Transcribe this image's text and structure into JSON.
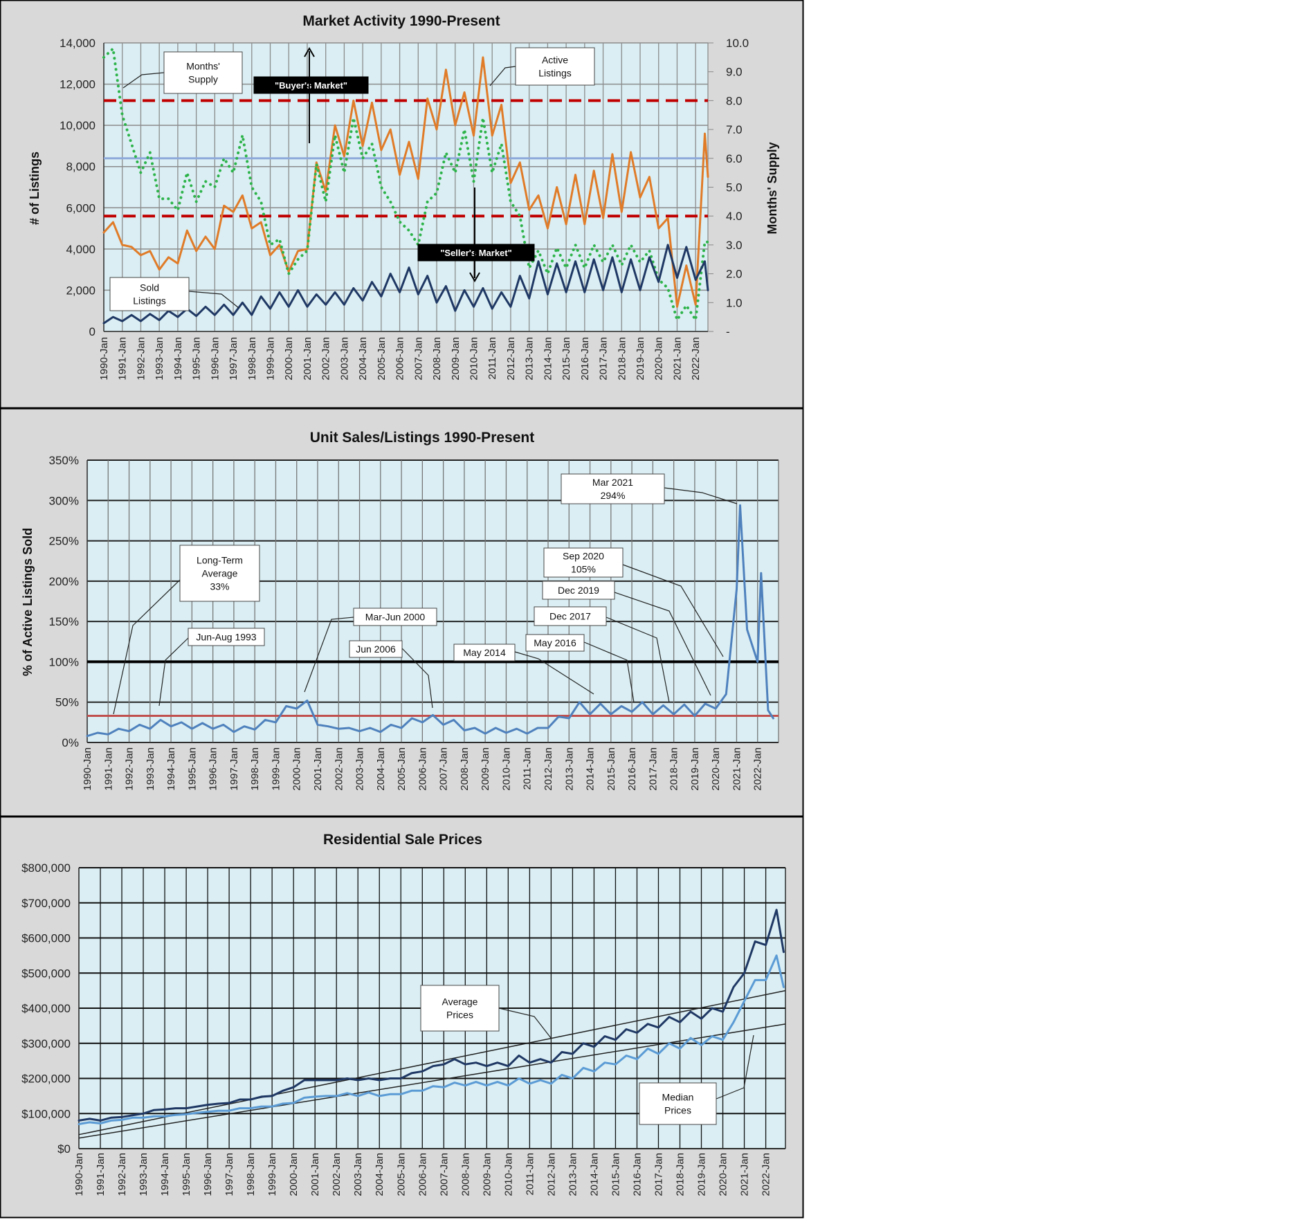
{
  "chart_data": [
    {
      "type": "line",
      "title": "Market Activity  1990-Present",
      "ylabel": "# of Listings",
      "ylabel_right": "Months' Supply",
      "ylim": [
        0,
        14000
      ],
      "ylim_right": [
        0,
        10
      ],
      "xlim": [
        "1990-01",
        "2022-09"
      ],
      "grid": true,
      "yticks": [
        "0",
        "2,000",
        "4,000",
        "6,000",
        "8,000",
        "10,000",
        "12,000",
        "14,000"
      ],
      "yticks_right": [
        "-",
        "1.0",
        "2.0",
        "3.0",
        "4.0",
        "5.0",
        "6.0",
        "7.0",
        "8.0",
        "9.0",
        "10.0"
      ],
      "xticks": [
        "1990-Jan",
        "1991-Jan",
        "1992-Jan",
        "1993-Jan",
        "1994-Jan",
        "1995-Jan",
        "1996-Jan",
        "1997-Jan",
        "1998-Jan",
        "1999-Jan",
        "2000-Jan",
        "2001-Jan",
        "2002-Jan",
        "2003-Jan",
        "2004-Jan",
        "2005-Jan",
        "2006-Jan",
        "2007-Jan",
        "2008-Jan",
        "2009-Jan",
        "2010-Jan",
        "2011-Jan",
        "2012-Jan",
        "2013-Jan",
        "2014-Jan",
        "2015-Jan",
        "2016-Jan",
        "2017-Jan",
        "2018-Jan",
        "2019-Jan",
        "2020-Jan",
        "2021-Jan",
        "2022-Jan"
      ],
      "x": [
        "1990-01",
        "1990-07",
        "1991-01",
        "1991-07",
        "1992-01",
        "1992-07",
        "1993-01",
        "1993-07",
        "1994-01",
        "1994-07",
        "1995-01",
        "1995-07",
        "1996-01",
        "1996-07",
        "1997-01",
        "1997-07",
        "1998-01",
        "1998-07",
        "1999-01",
        "1999-07",
        "2000-01",
        "2000-07",
        "2001-01",
        "2001-07",
        "2002-01",
        "2002-07",
        "2003-01",
        "2003-07",
        "2004-01",
        "2004-07",
        "2005-01",
        "2005-07",
        "2006-01",
        "2006-07",
        "2007-01",
        "2007-07",
        "2008-01",
        "2008-07",
        "2009-01",
        "2009-07",
        "2010-01",
        "2010-07",
        "2011-01",
        "2011-07",
        "2012-01",
        "2012-07",
        "2013-01",
        "2013-07",
        "2014-01",
        "2014-07",
        "2015-01",
        "2015-07",
        "2016-01",
        "2016-07",
        "2017-01",
        "2017-07",
        "2018-01",
        "2018-07",
        "2019-01",
        "2019-07",
        "2020-01",
        "2020-07",
        "2021-01",
        "2021-07",
        "2022-01",
        "2022-07",
        "2022-09"
      ],
      "series": [
        {
          "name": "Active Listings",
          "axis": "left",
          "color": "#e07b28",
          "style": "solid",
          "values": [
            4800,
            5300,
            4200,
            4100,
            3700,
            3900,
            3000,
            3600,
            3300,
            4900,
            3900,
            4600,
            4000,
            6100,
            5800,
            6600,
            5000,
            5300,
            3700,
            4200,
            2900,
            3900,
            4000,
            8200,
            6800,
            10000,
            8500,
            11200,
            9000,
            11100,
            8800,
            9800,
            7600,
            9200,
            7400,
            11300,
            9800,
            12700,
            10000,
            11600,
            9500,
            13300,
            9500,
            11000,
            7200,
            8200,
            5900,
            6600,
            5000,
            7000,
            5200,
            7600,
            5200,
            7800,
            5500,
            8600,
            5800,
            8700,
            6500,
            7500,
            5000,
            5500,
            1200,
            3200,
            1300,
            9600,
            7500
          ]
        },
        {
          "name": "Months' Supply",
          "axis": "right",
          "color": "#2db34a",
          "style": "dotted",
          "values": [
            9.5,
            9.8,
            7.5,
            6.5,
            5.5,
            6.2,
            4.6,
            4.6,
            4.2,
            5.5,
            4.5,
            5.2,
            5.0,
            6.0,
            5.5,
            6.8,
            5.0,
            4.5,
            3.0,
            3.2,
            2.0,
            2.5,
            2.8,
            5.8,
            4.5,
            6.8,
            5.5,
            7.4,
            6.0,
            6.5,
            5.0,
            4.5,
            3.8,
            3.5,
            3.0,
            4.5,
            4.8,
            6.2,
            5.5,
            7.0,
            5.2,
            7.4,
            5.5,
            6.5,
            4.5,
            4.0,
            2.2,
            2.8,
            2.0,
            2.9,
            2.2,
            3.0,
            2.2,
            3.0,
            2.4,
            3.0,
            2.3,
            3.0,
            2.4,
            2.8,
            1.8,
            1.5,
            0.4,
            0.9,
            0.4,
            3.1,
            3.1
          ]
        },
        {
          "name": "Sold Listings",
          "axis": "left",
          "color": "#1f3864",
          "style": "solid",
          "values": [
            400,
            700,
            500,
            800,
            500,
            850,
            550,
            1000,
            700,
            1100,
            750,
            1200,
            800,
            1300,
            800,
            1400,
            800,
            1700,
            1100,
            1900,
            1200,
            2000,
            1200,
            1800,
            1300,
            1900,
            1300,
            2100,
            1500,
            2400,
            1700,
            2800,
            1900,
            3100,
            1800,
            2700,
            1400,
            2200,
            1000,
            2000,
            1200,
            2100,
            1100,
            1900,
            1200,
            2700,
            1600,
            3400,
            1800,
            3300,
            1900,
            3400,
            1900,
            3500,
            2000,
            3600,
            1900,
            3500,
            2000,
            3600,
            2400,
            4200,
            2600,
            4100,
            2500,
            3400,
            2000
          ]
        }
      ],
      "reference_lines": [
        {
          "axis": "right",
          "value": 8.0,
          "color": "#c00000",
          "style": "dashed"
        },
        {
          "axis": "right",
          "value": 6.0,
          "color": "#8eaadb",
          "style": "solid"
        },
        {
          "axis": "right",
          "value": 4.0,
          "color": "#c00000",
          "style": "dashed"
        }
      ],
      "annotations": {
        "months_supply": [
          "Months'",
          "Supply"
        ],
        "active_listings": [
          "Active",
          "Listings"
        ],
        "sold_listings": [
          "Sold",
          "Listings"
        ],
        "buyers_market": "\"Buyer's Market\"",
        "sellers_market": "\"Seller's Market\""
      }
    },
    {
      "type": "line",
      "title": "Unit Sales/Listings 1990-Present",
      "ylabel": "% of Active Listings Sold",
      "ylim": [
        0,
        350
      ],
      "xlim": [
        "1990-01",
        "2023-01"
      ],
      "grid": true,
      "yticks": [
        "0%",
        "50%",
        "100%",
        "150%",
        "200%",
        "250%",
        "300%",
        "350%"
      ],
      "xticks": [
        "1990-Jan",
        "1991-Jan",
        "1992-Jan",
        "1993-Jan",
        "1994-Jan",
        "1995-Jan",
        "1996-Jan",
        "1997-Jan",
        "1998-Jan",
        "1999-Jan",
        "2000-Jan",
        "2001-Jan",
        "2002-Jan",
        "2003-Jan",
        "2004-Jan",
        "2005-Jan",
        "2006-Jan",
        "2007-Jan",
        "2008-Jan",
        "2009-Jan",
        "2010-Jan",
        "2011-Jan",
        "2012-Jan",
        "2013-Jan",
        "2014-Jan",
        "2015-Jan",
        "2016-Jan",
        "2017-Jan",
        "2018-Jan",
        "2019-Jan",
        "2020-Jan",
        "2021-Jan",
        "2022-Jan"
      ],
      "x": [
        "1990-01",
        "1990-07",
        "1991-01",
        "1991-07",
        "1992-01",
        "1992-07",
        "1993-01",
        "1993-07",
        "1994-01",
        "1994-07",
        "1995-01",
        "1995-07",
        "1996-01",
        "1996-07",
        "1997-01",
        "1997-07",
        "1998-01",
        "1998-07",
        "1999-01",
        "1999-07",
        "2000-01",
        "2000-07",
        "2001-01",
        "2001-07",
        "2002-01",
        "2002-07",
        "2003-01",
        "2003-07",
        "2004-01",
        "2004-07",
        "2005-01",
        "2005-07",
        "2006-01",
        "2006-07",
        "2007-01",
        "2007-07",
        "2008-01",
        "2008-07",
        "2009-01",
        "2009-07",
        "2010-01",
        "2010-07",
        "2011-01",
        "2011-07",
        "2012-01",
        "2012-07",
        "2013-01",
        "2013-07",
        "2014-01",
        "2014-07",
        "2015-01",
        "2015-07",
        "2016-01",
        "2016-07",
        "2017-01",
        "2017-07",
        "2018-01",
        "2018-07",
        "2019-01",
        "2019-07",
        "2020-01",
        "2020-07",
        "2021-01",
        "2021-03",
        "2021-07",
        "2022-01",
        "2022-03",
        "2022-07",
        "2022-10"
      ],
      "series": [
        {
          "color": "#4f81bd",
          "style": "solid",
          "values": [
            8,
            12,
            10,
            17,
            14,
            22,
            17,
            28,
            20,
            25,
            17,
            24,
            17,
            22,
            13,
            20,
            16,
            28,
            25,
            45,
            42,
            52,
            22,
            20,
            17,
            18,
            14,
            18,
            13,
            22,
            18,
            30,
            25,
            34,
            22,
            28,
            15,
            18,
            11,
            18,
            12,
            17,
            11,
            18,
            18,
            32,
            30,
            50,
            35,
            48,
            35,
            45,
            38,
            50,
            35,
            46,
            35,
            47,
            33,
            48,
            42,
            60,
            190,
            294,
            140,
            100,
            210,
            40,
            30
          ]
        }
      ],
      "reference_lines": [
        {
          "value": 100,
          "color": "#000000",
          "style": "solid"
        },
        {
          "value": 33,
          "color": "#c0504d",
          "style": "solid"
        }
      ],
      "annotations": {
        "long_term": [
          "Long-Term",
          "Average",
          "33%"
        ],
        "jun_aug_1993": "Jun-Aug 1993",
        "mar_jun_2000": "Mar-Jun 2000",
        "jun_2006": "Jun 2006",
        "may_2014": "May 2014",
        "may_2016": "May 2016",
        "dec_2017": "Dec 2017",
        "dec_2019": "Dec 2019",
        "sep_2020": [
          "Sep 2020",
          "105%"
        ],
        "mar_2021": [
          "Mar 2021",
          "294%"
        ]
      }
    },
    {
      "type": "line",
      "title": "Residential Sale Prices",
      "ylim": [
        0,
        800000
      ],
      "xlim": [
        "1990-01",
        "2022-12"
      ],
      "grid": true,
      "yticks": [
        "$0",
        "$100,000",
        "$200,000",
        "$300,000",
        "$400,000",
        "$500,000",
        "$600,000",
        "$700,000",
        "$800,000"
      ],
      "xticks": [
        "1990-Jan",
        "1991-Jan",
        "1992-Jan",
        "1993-Jan",
        "1994-Jan",
        "1995-Jan",
        "1996-Jan",
        "1997-Jan",
        "1998-Jan",
        "1999-Jan",
        "2000-Jan",
        "2001-Jan",
        "2002-Jan",
        "2003-Jan",
        "2004-Jan",
        "2005-Jan",
        "2006-Jan",
        "2007-Jan",
        "2008-Jan",
        "2009-Jan",
        "2010-Jan",
        "2011-Jan",
        "2012-Jan",
        "2013-Jan",
        "2014-Jan",
        "2015-Jan",
        "2016-Jan",
        "2017-Jan",
        "2018-Jan",
        "2019-Jan",
        "2020-Jan",
        "2021-Jan",
        "2022-Jan"
      ],
      "x": [
        "1990-01",
        "1990-07",
        "1991-01",
        "1991-07",
        "1992-01",
        "1992-07",
        "1993-01",
        "1993-07",
        "1994-01",
        "1994-07",
        "1995-01",
        "1995-07",
        "1996-01",
        "1996-07",
        "1997-01",
        "1997-07",
        "1998-01",
        "1998-07",
        "1999-01",
        "1999-07",
        "2000-01",
        "2000-07",
        "2001-01",
        "2001-07",
        "2002-01",
        "2002-07",
        "2003-01",
        "2003-07",
        "2004-01",
        "2004-07",
        "2005-01",
        "2005-07",
        "2006-01",
        "2006-07",
        "2007-01",
        "2007-07",
        "2008-01",
        "2008-07",
        "2009-01",
        "2009-07",
        "2010-01",
        "2010-07",
        "2011-01",
        "2011-07",
        "2012-01",
        "2012-07",
        "2013-01",
        "2013-07",
        "2014-01",
        "2014-07",
        "2015-01",
        "2015-07",
        "2016-01",
        "2016-07",
        "2017-01",
        "2017-07",
        "2018-01",
        "2018-07",
        "2019-01",
        "2019-07",
        "2020-01",
        "2020-07",
        "2021-01",
        "2021-07",
        "2022-01",
        "2022-07",
        "2022-11"
      ],
      "series": [
        {
          "name": "Average Prices",
          "color": "#1f3864",
          "values": [
            80000,
            85000,
            80000,
            88000,
            90000,
            95000,
            100000,
            110000,
            112000,
            115000,
            115000,
            120000,
            125000,
            128000,
            130000,
            140000,
            140000,
            148000,
            150000,
            165000,
            175000,
            195000,
            195000,
            195000,
            195000,
            200000,
            195000,
            200000,
            195000,
            200000,
            200000,
            215000,
            220000,
            235000,
            240000,
            255000,
            240000,
            245000,
            235000,
            245000,
            235000,
            265000,
            245000,
            255000,
            245000,
            275000,
            270000,
            300000,
            290000,
            320000,
            310000,
            340000,
            330000,
            355000,
            345000,
            375000,
            360000,
            390000,
            370000,
            400000,
            390000,
            460000,
            500000,
            590000,
            580000,
            680000,
            560000
          ]
        },
        {
          "name": "Median Prices",
          "color": "#5b9bd5",
          "values": [
            70000,
            75000,
            72000,
            80000,
            82000,
            88000,
            88000,
            92000,
            92000,
            96000,
            98000,
            102000,
            105000,
            108000,
            108000,
            115000,
            115000,
            120000,
            120000,
            128000,
            130000,
            145000,
            148000,
            150000,
            150000,
            158000,
            150000,
            160000,
            150000,
            155000,
            155000,
            165000,
            165000,
            178000,
            175000,
            188000,
            180000,
            190000,
            180000,
            190000,
            180000,
            200000,
            185000,
            195000,
            185000,
            210000,
            200000,
            230000,
            220000,
            245000,
            240000,
            265000,
            255000,
            285000,
            270000,
            300000,
            285000,
            315000,
            295000,
            320000,
            310000,
            360000,
            420000,
            480000,
            480000,
            550000,
            460000
          ]
        }
      ],
      "trendlines": [
        {
          "x": [
            "1990-01",
            "2022-12"
          ],
          "values": [
            40000,
            450000
          ]
        },
        {
          "x": [
            "1990-01",
            "2022-12"
          ],
          "values": [
            30000,
            355000
          ]
        }
      ],
      "annotations": {
        "average": [
          "Average",
          "Prices"
        ],
        "median": [
          "Median",
          "Prices"
        ]
      }
    }
  ]
}
